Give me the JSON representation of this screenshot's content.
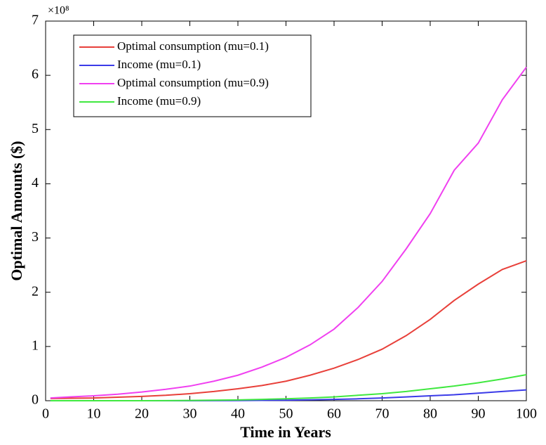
{
  "chart_data": {
    "type": "line",
    "xlabel": "Time in Years",
    "ylabel": "Optimal Amounts ($)",
    "y_multiplier": "×10⁸",
    "x": [
      1,
      5,
      10,
      15,
      20,
      25,
      30,
      35,
      40,
      45,
      50,
      55,
      60,
      65,
      70,
      75,
      80,
      85,
      90,
      95,
      100
    ],
    "series": [
      {
        "name": "Optimal consumption (mu=0.1)",
        "color": "#e8403a",
        "values": [
          0.04,
          0.045,
          0.05,
          0.065,
          0.08,
          0.1,
          0.13,
          0.17,
          0.22,
          0.28,
          0.36,
          0.47,
          0.6,
          0.76,
          0.95,
          1.2,
          1.5,
          1.85,
          2.15,
          2.42,
          2.58
        ]
      },
      {
        "name": "Income (mu=0.1)",
        "color": "#3b3be8",
        "values": [
          0,
          0,
          0,
          0,
          0,
          0,
          0,
          0.002,
          0.004,
          0.007,
          0.01,
          0.017,
          0.025,
          0.035,
          0.05,
          0.07,
          0.09,
          0.11,
          0.14,
          0.17,
          0.2
        ]
      },
      {
        "name": "Optimal consumption (mu=0.9)",
        "color": "#f040f0",
        "values": [
          0.05,
          0.07,
          0.09,
          0.12,
          0.16,
          0.21,
          0.27,
          0.36,
          0.47,
          0.62,
          0.8,
          1.03,
          1.32,
          1.72,
          2.2,
          2.8,
          3.45,
          4.25,
          4.75,
          5.55,
          6.15
        ]
      },
      {
        "name": "Income (mu=0.9)",
        "color": "#40e840",
        "values": [
          0,
          0,
          0,
          0,
          0,
          0.002,
          0.005,
          0.01,
          0.015,
          0.025,
          0.035,
          0.05,
          0.07,
          0.1,
          0.13,
          0.17,
          0.22,
          0.27,
          0.33,
          0.4,
          0.48
        ]
      }
    ],
    "xlim": [
      0,
      100
    ],
    "xticks": [
      0,
      10,
      20,
      30,
      40,
      50,
      60,
      70,
      80,
      90,
      100
    ],
    "ylim": [
      0,
      7
    ],
    "yticks": [
      0,
      1,
      2,
      3,
      4,
      5,
      6,
      7
    ],
    "legend": "upper-left"
  }
}
